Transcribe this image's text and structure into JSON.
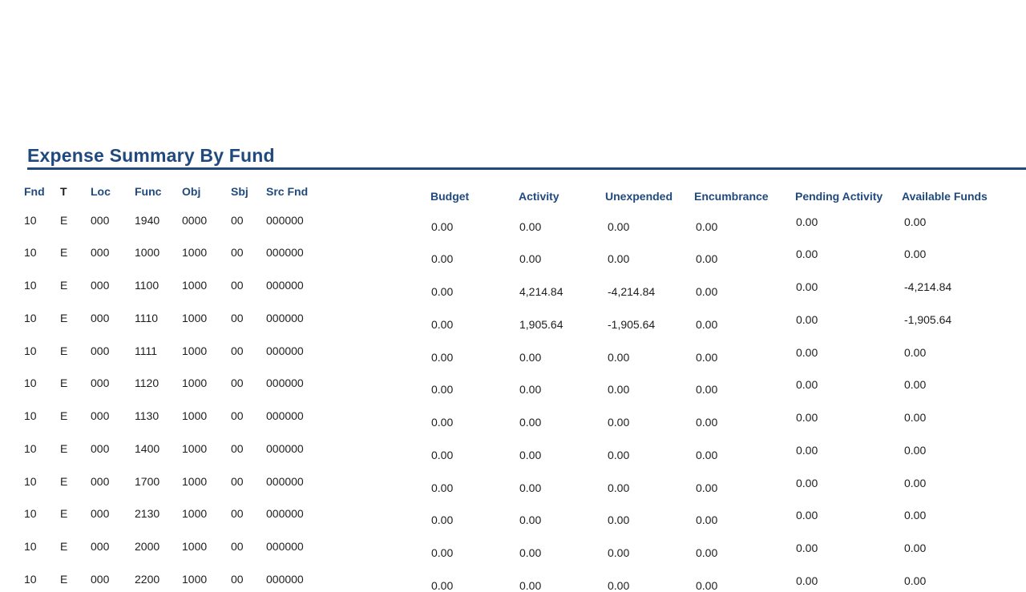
{
  "page": {
    "title": "Expense Summary By Fund"
  },
  "colors": {
    "accent": "#204a7d",
    "text": "#1d1d1d"
  },
  "table": {
    "id_headers": [
      "Fnd",
      "T",
      "Loc",
      "Func",
      "Obj",
      "Sbj",
      "Src Fnd"
    ],
    "amount_headers": [
      "Budget",
      "Activity",
      "Unexpended",
      "Encumbrance",
      "Pending Activity",
      "Available Funds"
    ],
    "rows": [
      {
        "fnd": "10",
        "t": "E",
        "loc": "000",
        "func": "1940",
        "obj": "0000",
        "sbj": "00",
        "src_fnd": "000000",
        "budget": "0.00",
        "activity": "0.00",
        "unexpended": "0.00",
        "encumbrance": "0.00",
        "pending_activity": "0.00",
        "available_funds": "0.00"
      },
      {
        "fnd": "10",
        "t": "E",
        "loc": "000",
        "func": "1000",
        "obj": "1000",
        "sbj": "00",
        "src_fnd": "000000",
        "budget": "0.00",
        "activity": "0.00",
        "unexpended": "0.00",
        "encumbrance": "0.00",
        "pending_activity": "0.00",
        "available_funds": "0.00"
      },
      {
        "fnd": "10",
        "t": "E",
        "loc": "000",
        "func": "1100",
        "obj": "1000",
        "sbj": "00",
        "src_fnd": "000000",
        "budget": "0.00",
        "activity": "4,214.84",
        "unexpended": "-4,214.84",
        "encumbrance": "0.00",
        "pending_activity": "0.00",
        "available_funds": "-4,214.84"
      },
      {
        "fnd": "10",
        "t": "E",
        "loc": "000",
        "func": "1110",
        "obj": "1000",
        "sbj": "00",
        "src_fnd": "000000",
        "budget": "0.00",
        "activity": "1,905.64",
        "unexpended": "-1,905.64",
        "encumbrance": "0.00",
        "pending_activity": "0.00",
        "available_funds": "-1,905.64"
      },
      {
        "fnd": "10",
        "t": "E",
        "loc": "000",
        "func": "1111",
        "obj": "1000",
        "sbj": "00",
        "src_fnd": "000000",
        "budget": "0.00",
        "activity": "0.00",
        "unexpended": "0.00",
        "encumbrance": "0.00",
        "pending_activity": "0.00",
        "available_funds": "0.00"
      },
      {
        "fnd": "10",
        "t": "E",
        "loc": "000",
        "func": "1120",
        "obj": "1000",
        "sbj": "00",
        "src_fnd": "000000",
        "budget": "0.00",
        "activity": "0.00",
        "unexpended": "0.00",
        "encumbrance": "0.00",
        "pending_activity": "0.00",
        "available_funds": "0.00"
      },
      {
        "fnd": "10",
        "t": "E",
        "loc": "000",
        "func": "1130",
        "obj": "1000",
        "sbj": "00",
        "src_fnd": "000000",
        "budget": "0.00",
        "activity": "0.00",
        "unexpended": "0.00",
        "encumbrance": "0.00",
        "pending_activity": "0.00",
        "available_funds": "0.00"
      },
      {
        "fnd": "10",
        "t": "E",
        "loc": "000",
        "func": "1400",
        "obj": "1000",
        "sbj": "00",
        "src_fnd": "000000",
        "budget": "0.00",
        "activity": "0.00",
        "unexpended": "0.00",
        "encumbrance": "0.00",
        "pending_activity": "0.00",
        "available_funds": "0.00"
      },
      {
        "fnd": "10",
        "t": "E",
        "loc": "000",
        "func": "1700",
        "obj": "1000",
        "sbj": "00",
        "src_fnd": "000000",
        "budget": "0.00",
        "activity": "0.00",
        "unexpended": "0.00",
        "encumbrance": "0.00",
        "pending_activity": "0.00",
        "available_funds": "0.00"
      },
      {
        "fnd": "10",
        "t": "E",
        "loc": "000",
        "func": "2130",
        "obj": "1000",
        "sbj": "00",
        "src_fnd": "000000",
        "budget": "0.00",
        "activity": "0.00",
        "unexpended": "0.00",
        "encumbrance": "0.00",
        "pending_activity": "0.00",
        "available_funds": "0.00"
      },
      {
        "fnd": "10",
        "t": "E",
        "loc": "000",
        "func": "2000",
        "obj": "1000",
        "sbj": "00",
        "src_fnd": "000000",
        "budget": "0.00",
        "activity": "0.00",
        "unexpended": "0.00",
        "encumbrance": "0.00",
        "pending_activity": "0.00",
        "available_funds": "0.00"
      },
      {
        "fnd": "10",
        "t": "E",
        "loc": "000",
        "func": "2200",
        "obj": "1000",
        "sbj": "00",
        "src_fnd": "000000",
        "budget": "0.00",
        "activity": "0.00",
        "unexpended": "0.00",
        "encumbrance": "0.00",
        "pending_activity": "0.00",
        "available_funds": "0.00"
      }
    ]
  }
}
